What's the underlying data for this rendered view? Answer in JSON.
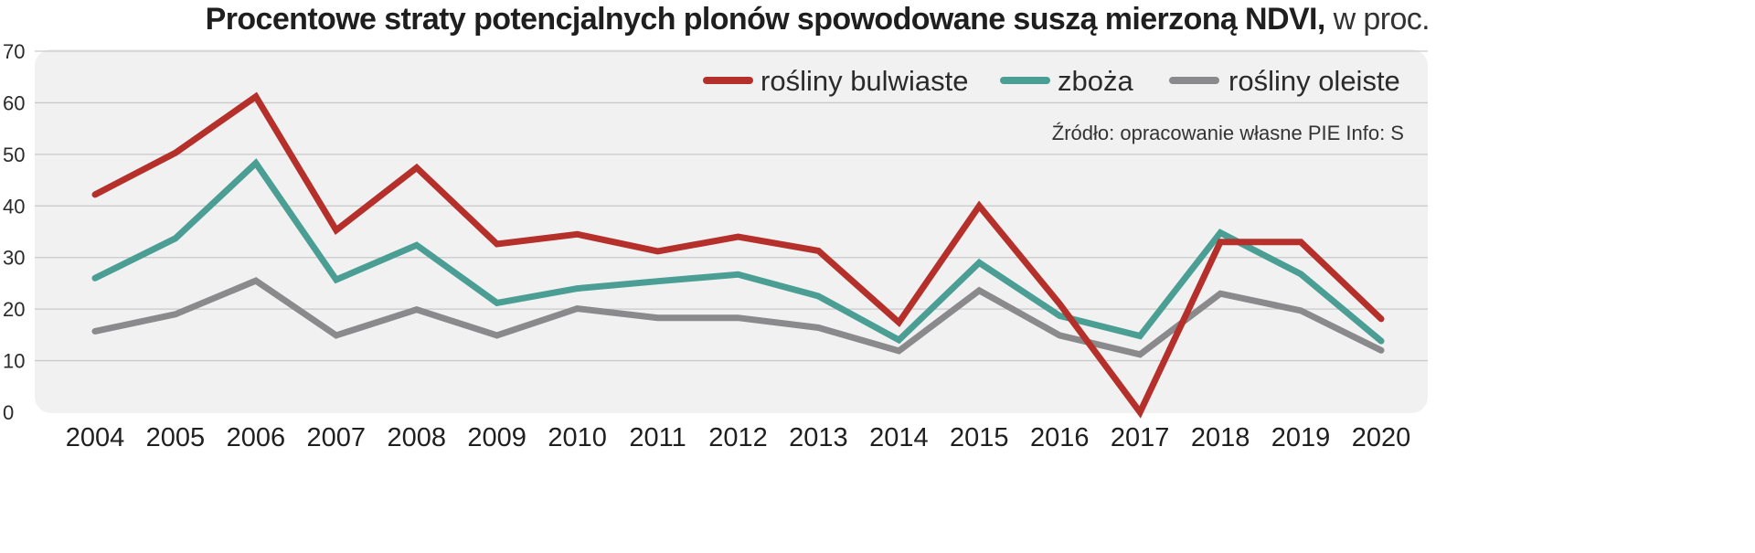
{
  "chart_data": {
    "type": "line",
    "title": "Procentowe straty potencjalnych plonów spowodowane suszą mierzoną NDVI,",
    "title_unit": "w proc.",
    "source": "Źródło: opracowanie własne PIE   Info: S",
    "categories": [
      "2004",
      "2005",
      "2006",
      "2007",
      "2008",
      "2009",
      "2010",
      "2011",
      "2012",
      "2013",
      "2014",
      "2015",
      "2016",
      "2017",
      "2018",
      "2019",
      "2020"
    ],
    "y_ticks": [
      "0",
      "10",
      "20",
      "30",
      "40",
      "50",
      "60",
      "70"
    ],
    "ylim": [
      0,
      70
    ],
    "grid": true,
    "legend_position": "top-right",
    "series": [
      {
        "name": "rośliny bulwiaste",
        "color": "#b5302a",
        "values": [
          42.2,
          50.3,
          61.2,
          35.3,
          47.4,
          32.6,
          34.5,
          31.2,
          34.0,
          31.3,
          17.4,
          40.0,
          21.0,
          0.0,
          33.0,
          33.0,
          18.1
        ]
      },
      {
        "name": "zboża",
        "color": "#4b9e93",
        "values": [
          26.0,
          33.7,
          48.3,
          25.7,
          32.4,
          21.2,
          24.0,
          25.4,
          26.7,
          22.5,
          14.0,
          29.0,
          18.7,
          14.8,
          34.8,
          26.8,
          13.8
        ]
      },
      {
        "name": "rośliny oleiste",
        "color": "#8a898b",
        "values": [
          15.7,
          19.0,
          25.5,
          14.9,
          19.9,
          14.9,
          20.1,
          18.3,
          18.3,
          16.4,
          11.9,
          23.6,
          14.9,
          11.2,
          23.0,
          19.7,
          12.0
        ]
      }
    ]
  }
}
